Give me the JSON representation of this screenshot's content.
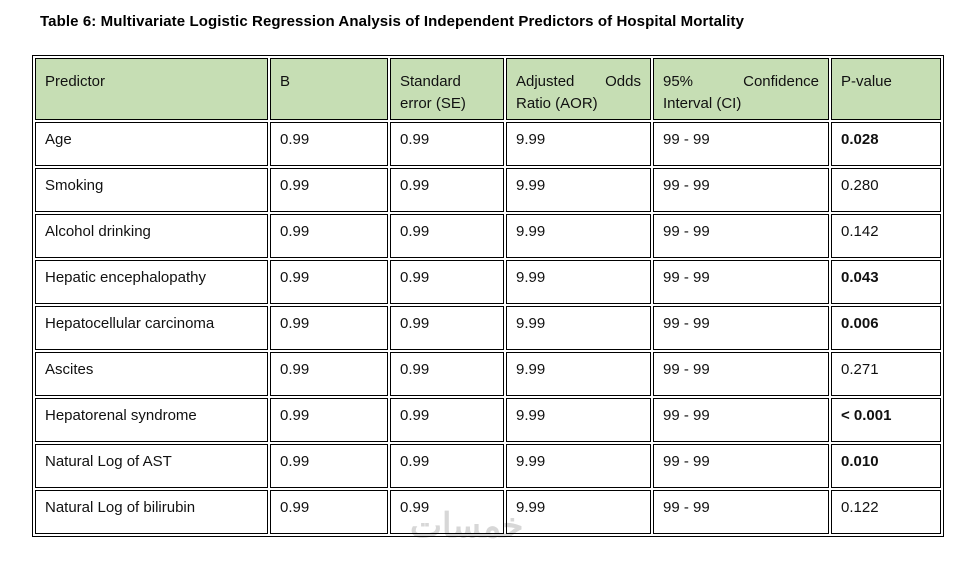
{
  "title": "Table 6: Multivariate Logistic Regression Analysis of Independent Predictors of Hospital Mortality",
  "table": {
    "columns": [
      {
        "label": "Predictor"
      },
      {
        "label": "B"
      },
      {
        "label": "Standard error (SE)"
      },
      {
        "label": "Adjusted Odds Ratio (AOR)"
      },
      {
        "label": "95% Confidence Interval (CI)"
      },
      {
        "label": "P-value"
      }
    ],
    "rows": [
      {
        "predictor": "Age",
        "b": "0.99",
        "se": "0.99",
        "aor": "9.99",
        "ci": "99 - 99",
        "p": "0.028",
        "p_bold": true
      },
      {
        "predictor": "Smoking",
        "b": "0.99",
        "se": "0.99",
        "aor": "9.99",
        "ci": "99 - 99",
        "p": "0.280",
        "p_bold": false
      },
      {
        "predictor": "Alcohol drinking",
        "b": "0.99",
        "se": "0.99",
        "aor": "9.99",
        "ci": "99 - 99",
        "p": "0.142",
        "p_bold": false
      },
      {
        "predictor": "Hepatic encephalopathy",
        "b": "0.99",
        "se": "0.99",
        "aor": "9.99",
        "ci": "99 - 99",
        "p": "0.043",
        "p_bold": true
      },
      {
        "predictor": "Hepatocellular carcinoma",
        "b": "0.99",
        "se": "0.99",
        "aor": "9.99",
        "ci": "99 - 99",
        "p": "0.006",
        "p_bold": true
      },
      {
        "predictor": "Ascites",
        "b": "0.99",
        "se": "0.99",
        "aor": "9.99",
        "ci": "99 - 99",
        "p": "0.271",
        "p_bold": false
      },
      {
        "predictor": "Hepatorenal syndrome",
        "b": "0.99",
        "se": "0.99",
        "aor": "9.99",
        "ci": "99 - 99",
        "p": "< 0.001",
        "p_bold": true
      },
      {
        "predictor": "Natural Log of AST",
        "b": "0.99",
        "se": "0.99",
        "aor": "9.99",
        "ci": "99 - 99",
        "p": "0.010",
        "p_bold": true
      },
      {
        "predictor": "Natural Log of bilirubin",
        "b": "0.99",
        "se": "0.99",
        "aor": "9.99",
        "ci": "99 - 99",
        "p": "0.122",
        "p_bold": false
      }
    ]
  },
  "watermark": "خمسات",
  "colors": {
    "header_bg": "#c6deb4",
    "border": "#000000",
    "watermark_gray": "#d7d7d7"
  }
}
